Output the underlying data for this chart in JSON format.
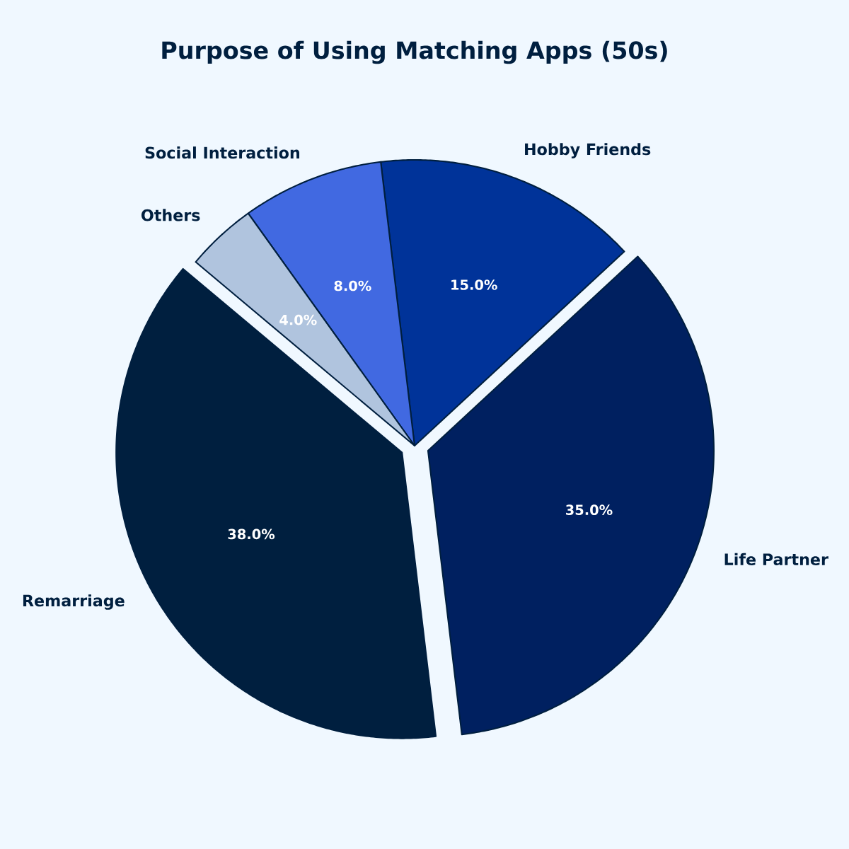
{
  "chart_data": {
    "type": "pie",
    "title": "Purpose of Using Matching Apps (50s)",
    "categories": [
      "Remarriage",
      "Life Partner",
      "Hobby Friends",
      "Social Interaction",
      "Others"
    ],
    "values": [
      38,
      35,
      15,
      8,
      4
    ],
    "colors": [
      "#001f3f",
      "#002060",
      "#003399",
      "#4169e1",
      "#b0c4de"
    ],
    "value_labels": [
      "38.0%",
      "35.0%",
      "15.0%",
      "8.0%",
      "4.0%"
    ]
  }
}
